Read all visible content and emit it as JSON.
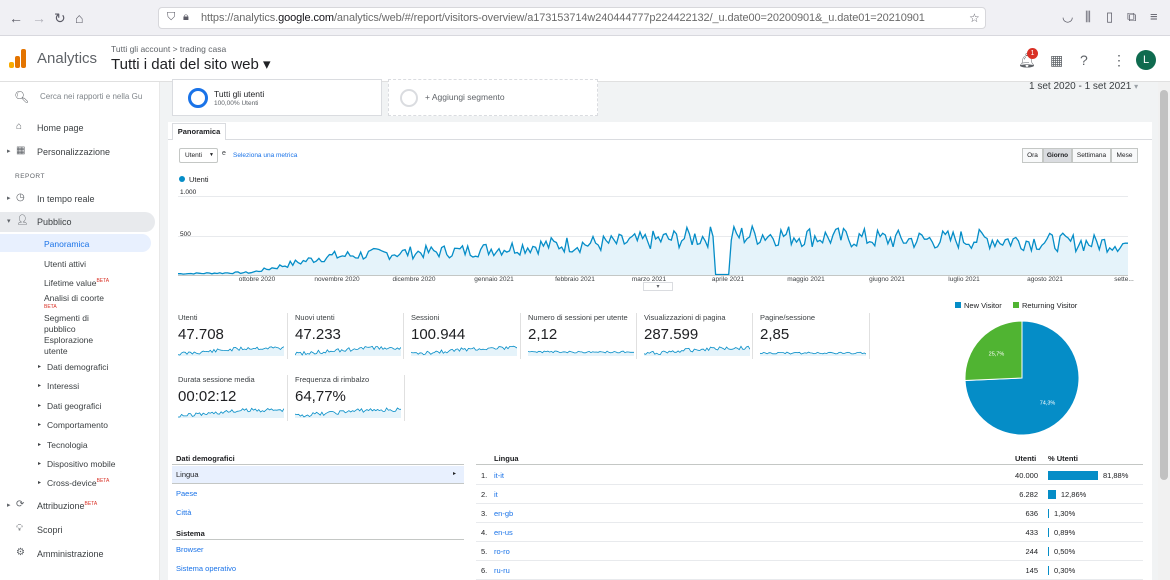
{
  "browser": {
    "url_prefix": "https://analytics.",
    "url_domain": "google.com",
    "url_suffix": "/analytics/web/#/report/visitors-overview/a173153714w240444777p224422132/_u.date00=20200901&_u.date01=20210901"
  },
  "app": {
    "name": "Analytics",
    "breadcrumb": "Tutti gli account  >  trading casa",
    "view_title": "Tutti i dati del sito web ▾",
    "notification_count": "1",
    "avatar_letter": "L"
  },
  "sidebar": {
    "search_placeholder": "Cerca nei rapporti e nella Gu",
    "home": "Home page",
    "custom": "Personalizzazione",
    "report_header": "REPORT",
    "realtime": "In tempo reale",
    "audience": "Pubblico",
    "audience_items": [
      "Panoramica",
      "Utenti attivi",
      "Lifetime value",
      "Analisi di coorte",
      "Segmenti di pubblico",
      "Esplorazione utente"
    ],
    "beta_label": "BETA",
    "audience_groups": [
      "Dati demografici",
      "Interessi",
      "Dati geografici",
      "Comportamento",
      "Tecnologia",
      "Dispositivo mobile",
      "Cross-device"
    ],
    "attribution": "Attribuzione",
    "discover": "Scopri",
    "admin": "Amministrazione"
  },
  "segments": {
    "active_title": "Tutti gli utenti",
    "active_sub": "100,00% Utenti",
    "add_label": "+ Aggiungi segmento"
  },
  "date_range": "1 set 2020 - 1 set 2021",
  "tab_label": "Panoramica",
  "metric_selector": {
    "value": "Utenti",
    "and": "e",
    "link": "Seleziona una metrica"
  },
  "periods": [
    "Ora",
    "Giorno",
    "Settimana",
    "Mese"
  ],
  "active_period": "Giorno",
  "chart_data": {
    "type": "line",
    "series": [
      {
        "name": "Utenti",
        "color": "#058dc7"
      }
    ],
    "y_ticks": [
      "1.000",
      "500"
    ],
    "ylim": [
      0,
      1000
    ],
    "x_ticks": [
      "ottobre 2020",
      "novembre 2020",
      "dicembre 2020",
      "gennaio 2021",
      "febbraio 2021",
      "marzo 2021",
      "aprile 2021",
      "maggio 2021",
      "giugno 2021",
      "luglio 2021",
      "agosto 2021",
      "sette..."
    ],
    "values_monthly": [
      30,
      45,
      250,
      300,
      330,
      400,
      430,
      500,
      540,
      500,
      470,
      480,
      440,
      420
    ]
  },
  "metrics": [
    {
      "label": "Utenti",
      "value": "47.708"
    },
    {
      "label": "Nuovi utenti",
      "value": "47.233"
    },
    {
      "label": "Sessioni",
      "value": "100.944"
    },
    {
      "label": "Numero di sessioni per utente",
      "value": "2,12"
    },
    {
      "label": "Visualizzazioni di pagina",
      "value": "287.599"
    },
    {
      "label": "Pagine/sessione",
      "value": "2,85"
    },
    {
      "label": "Durata sessione media",
      "value": "00:02:12"
    },
    {
      "label": "Frequenza di rimbalzo",
      "value": "64,77%"
    }
  ],
  "pie": {
    "type": "pie",
    "slices": [
      {
        "name": "New Visitor",
        "value": 74.3,
        "label": "74,3%",
        "color": "#058dc7"
      },
      {
        "name": "Returning Visitor",
        "value": 25.7,
        "label": "25,7%",
        "color": "#50b432"
      }
    ]
  },
  "demographics": {
    "header": "Dati demografici",
    "items": [
      "Lingua",
      "Paese",
      "Città"
    ],
    "system_header": "Sistema",
    "system_items": [
      "Browser",
      "Sistema operativo"
    ]
  },
  "language_table": {
    "headers": [
      "Lingua",
      "Utenti",
      "% Utenti"
    ],
    "rows": [
      {
        "n": "1.",
        "lang": "it-it",
        "users": "40.000",
        "pct": "81,88%",
        "share": 81.88
      },
      {
        "n": "2.",
        "lang": "it",
        "users": "6.282",
        "pct": "12,86%",
        "share": 12.86
      },
      {
        "n": "3.",
        "lang": "en-gb",
        "users": "636",
        "pct": "1,30%",
        "share": 1.3
      },
      {
        "n": "4.",
        "lang": "en-us",
        "users": "433",
        "pct": "0,89%",
        "share": 0.89
      },
      {
        "n": "5.",
        "lang": "ro-ro",
        "users": "244",
        "pct": "0,50%",
        "share": 0.5
      },
      {
        "n": "6.",
        "lang": "ru-ru",
        "users": "145",
        "pct": "0,30%",
        "share": 0.3
      }
    ]
  }
}
